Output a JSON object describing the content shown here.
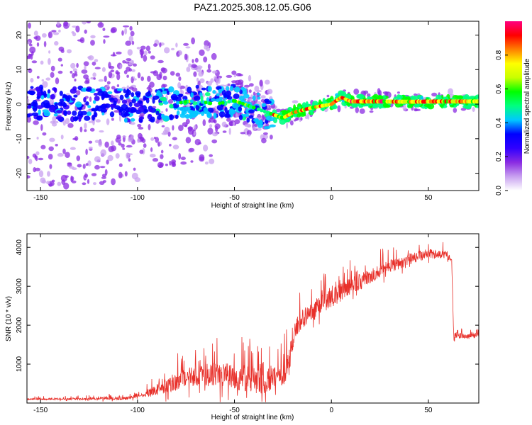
{
  "title": "PAZ1.2025.308.12.05.G06",
  "chart_data": [
    {
      "type": "heatmap",
      "xlabel": "Height of straight line (km)",
      "ylabel": "Frequency (Hz)",
      "xlim": [
        -157,
        76
      ],
      "ylim": [
        -25,
        24
      ],
      "xticks": [
        -150,
        -100,
        -50,
        0,
        50
      ],
      "yticks": [
        -20,
        -10,
        0,
        10,
        20
      ],
      "colorbar": {
        "label": "Normalized spectral amplitude",
        "range": [
          0,
          1
        ],
        "ticks": [
          "0.0",
          "0.2",
          "0.4",
          "0.6",
          "0.8"
        ],
        "colors": [
          "#ffffff",
          "#c8a0f0",
          "#8a2be2",
          "#3000ff",
          "#0000ff",
          "#00c8ff",
          "#00ff80",
          "#00ff00",
          "#c8ff00",
          "#ffff00",
          "#ff8000",
          "#ff0000",
          "#ff0080"
        ]
      },
      "ridge_frequency": {
        "x": [
          -155,
          -140,
          -120,
          -100,
          -85,
          -70,
          -60,
          -50,
          -40,
          -30,
          -25,
          -20,
          -10,
          0,
          5,
          10,
          20,
          40,
          60,
          75
        ],
        "y": [
          0.5,
          0,
          0.5,
          -0.5,
          0,
          1,
          0,
          1,
          -1,
          -3,
          -4,
          -2.5,
          -1,
          0,
          2,
          0.8,
          0.8,
          0.7,
          0.8,
          0.8
        ]
      }
    },
    {
      "type": "line",
      "xlabel": "Height of straight line (km)",
      "ylabel": "SNR (10 * v/v)",
      "xlim": [
        -157,
        76
      ],
      "ylim": [
        0,
        4350
      ],
      "xticks": [
        -150,
        -100,
        -50,
        0,
        50
      ],
      "yticks": [
        1000,
        2000,
        3000,
        4000
      ],
      "color": "#e8302a",
      "envelope": {
        "x": [
          -157,
          -105,
          -95,
          -85,
          -75,
          -65,
          -55,
          -45,
          -35,
          -25,
          -22,
          -19,
          -15,
          -10,
          -5,
          0,
          10,
          20,
          30,
          40,
          50,
          55,
          58,
          62,
          63,
          65,
          70,
          76
        ],
        "y": [
          100,
          120,
          250,
          450,
          650,
          720,
          700,
          650,
          550,
          750,
          1000,
          1900,
          2150,
          2350,
          2550,
          2700,
          3000,
          3250,
          3500,
          3700,
          3850,
          3800,
          3850,
          3700,
          1750,
          1750,
          1700,
          1750
        ]
      },
      "noise": {
        "x": [
          -157,
          -100,
          -85,
          -60,
          -40,
          -30,
          -22,
          -19,
          0,
          30,
          62,
          76
        ],
        "amp": [
          30,
          60,
          300,
          450,
          500,
          400,
          500,
          350,
          350,
          250,
          120,
          80
        ]
      }
    }
  ]
}
